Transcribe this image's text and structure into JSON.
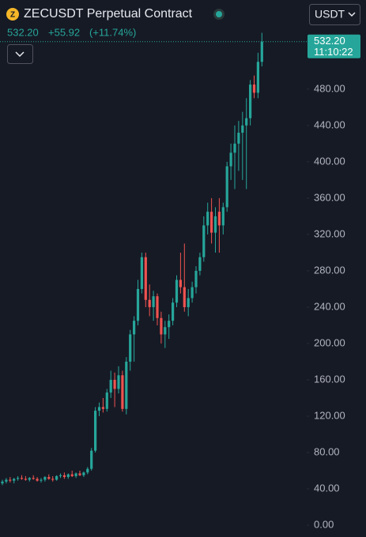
{
  "chart_data": {
    "type": "candlestick",
    "title": "ZECUSDT Perpetual Contract",
    "last_price": "532.20",
    "change": "+55.92",
    "change_pct": "(+11.74%)",
    "currency": "USDT",
    "countdown": "11:10:22",
    "up_color": "#26a69a",
    "down_color": "#ef5350",
    "ylim": [
      -13,
      552
    ],
    "yticks": [
      {
        "value": 0,
        "label": "0.00"
      },
      {
        "value": 40,
        "label": "40.00"
      },
      {
        "value": 80,
        "label": "80.00"
      },
      {
        "value": 120,
        "label": "120.00"
      },
      {
        "value": 160,
        "label": "160.00"
      },
      {
        "value": 200,
        "label": "200.00"
      },
      {
        "value": 240,
        "label": "240.00"
      },
      {
        "value": 280,
        "label": "280.00"
      },
      {
        "value": 320,
        "label": "320.00"
      },
      {
        "value": 360,
        "label": "360.00"
      },
      {
        "value": 400,
        "label": "400.00"
      },
      {
        "value": 440,
        "label": "440.00"
      },
      {
        "value": 480,
        "label": "480.00"
      }
    ],
    "open": [
      46,
      48,
      50,
      49,
      51,
      52,
      51,
      50,
      52,
      51,
      49,
      50,
      53,
      51,
      50,
      54,
      55,
      53,
      56,
      54,
      57,
      55,
      58,
      62,
      82,
      126,
      130,
      128,
      146,
      160,
      150,
      165,
      128,
      180,
      210,
      225,
      260,
      295,
      248,
      240,
      252,
      228,
      210,
      218,
      225,
      245,
      270,
      262,
      240,
      250,
      262,
      280,
      295,
      330,
      345,
      322,
      345,
      330,
      350,
      395,
      410,
      420,
      432,
      440,
      448,
      485,
      476,
      510
    ],
    "high": [
      50,
      52,
      53,
      52,
      54,
      55,
      54,
      53,
      55,
      53,
      52,
      54,
      56,
      54,
      55,
      57,
      58,
      57,
      60,
      58,
      60,
      59,
      64,
      85,
      130,
      135,
      140,
      150,
      170,
      168,
      175,
      170,
      185,
      215,
      230,
      270,
      300,
      300,
      265,
      258,
      255,
      235,
      225,
      232,
      250,
      275,
      300,
      310,
      260,
      268,
      285,
      300,
      340,
      355,
      360,
      350,
      360,
      355,
      400,
      420,
      440,
      445,
      455,
      470,
      490,
      495,
      520,
      542
    ],
    "low": [
      44,
      46,
      47,
      46,
      49,
      50,
      49,
      48,
      50,
      48,
      47,
      48,
      50,
      48,
      49,
      52,
      51,
      51,
      53,
      52,
      54,
      53,
      56,
      60,
      80,
      120,
      124,
      125,
      140,
      130,
      145,
      125,
      122,
      170,
      180,
      220,
      255,
      240,
      230,
      225,
      220,
      200,
      195,
      205,
      220,
      240,
      255,
      235,
      230,
      245,
      255,
      275,
      290,
      320,
      310,
      300,
      300,
      320,
      345,
      380,
      370,
      390,
      380,
      370,
      440,
      470,
      470,
      505
    ],
    "close": [
      48,
      50,
      49,
      51,
      52,
      51,
      50,
      52,
      51,
      49,
      50,
      53,
      51,
      50,
      54,
      55,
      53,
      56,
      54,
      57,
      55,
      58,
      62,
      82,
      126,
      130,
      128,
      146,
      160,
      150,
      165,
      128,
      180,
      210,
      225,
      260,
      295,
      248,
      240,
      252,
      228,
      210,
      218,
      225,
      245,
      270,
      262,
      240,
      250,
      262,
      280,
      295,
      330,
      345,
      322,
      340,
      330,
      350,
      395,
      410,
      420,
      432,
      440,
      448,
      485,
      476,
      510,
      532.2
    ]
  }
}
